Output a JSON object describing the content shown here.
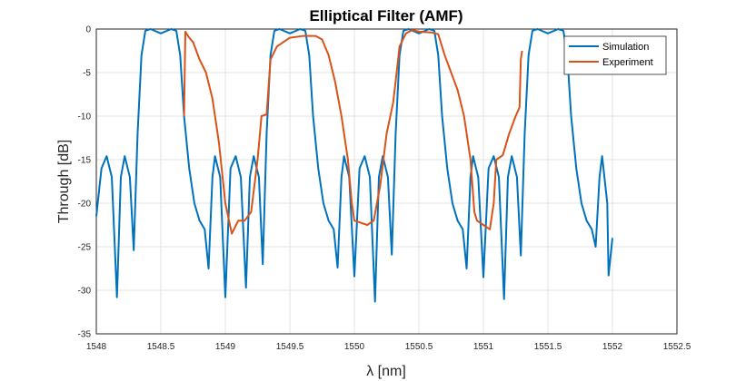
{
  "chart_data": {
    "type": "line",
    "title": "Elliptical Filter (AMF)",
    "xlabel": "λ [nm]",
    "ylabel": "Through [dB]",
    "xlim": [
      1548,
      1552.5
    ],
    "xticks": [
      1548,
      1548.5,
      1549,
      1549.5,
      1550,
      1550.5,
      1551,
      1551.5,
      1552,
      1552.5
    ],
    "ylim": [
      -35,
      0
    ],
    "yticks": [
      -35,
      -30,
      -25,
      -20,
      -15,
      -10,
      -5,
      0
    ],
    "grid": true,
    "legend": "northeast",
    "series": [
      {
        "name": "Simulation",
        "color": "#0072bd",
        "x": [
          1548,
          1548.04,
          1548.08,
          1548.12,
          1548.16,
          1548.19,
          1548.22,
          1548.26,
          1548.29,
          1548.32,
          1548.35,
          1548.38,
          1548.42,
          1548.5,
          1548.58,
          1548.62,
          1548.65,
          1548.68,
          1548.72,
          1548.76,
          1548.8,
          1548.84,
          1548.87,
          1548.9,
          1548.92,
          1548.96,
          1549,
          1549.04,
          1549.08,
          1549.12,
          1549.16,
          1549.19,
          1549.22,
          1549.26,
          1549.29,
          1549.32,
          1549.35,
          1549.38,
          1549.42,
          1549.5,
          1549.58,
          1549.62,
          1549.65,
          1549.68,
          1549.72,
          1549.76,
          1549.8,
          1549.84,
          1549.87,
          1549.9,
          1549.92,
          1549.96,
          1550,
          1550.04,
          1550.08,
          1550.12,
          1550.16,
          1550.19,
          1550.22,
          1550.26,
          1550.29,
          1550.32,
          1550.35,
          1550.38,
          1550.42,
          1550.5,
          1550.58,
          1550.62,
          1550.65,
          1550.68,
          1550.72,
          1550.76,
          1550.8,
          1550.84,
          1550.87,
          1550.9,
          1550.92,
          1550.96,
          1551,
          1551.04,
          1551.08,
          1551.12,
          1551.16,
          1551.19,
          1551.22,
          1551.26,
          1551.29,
          1551.32,
          1551.35,
          1551.38,
          1551.42,
          1551.5,
          1551.58,
          1551.62,
          1551.65,
          1551.68,
          1551.72,
          1551.76,
          1551.8,
          1551.84,
          1551.87,
          1551.9,
          1551.92,
          1551.96,
          1551.97,
          1552
        ],
        "values": [
          -21.5,
          -16,
          -14.6,
          -17,
          -30.8,
          -17,
          -14.6,
          -17,
          -25.4,
          -12,
          -3,
          -0.2,
          0,
          -0.5,
          0,
          -0.2,
          -3,
          -10,
          -16,
          -20,
          -22,
          -23,
          -27.5,
          -17,
          -14.6,
          -17,
          -30.8,
          -16,
          -14.6,
          -17,
          -29.7,
          -17,
          -14.6,
          -17,
          -27,
          -12,
          -3,
          -0.2,
          0,
          -0.5,
          0,
          -0.2,
          -3,
          -10,
          -16,
          -20,
          -22,
          -23,
          -27.4,
          -17,
          -14.6,
          -17,
          -28.4,
          -16,
          -14.6,
          -17,
          -31.3,
          -17,
          -14.6,
          -17,
          -25.9,
          -12,
          -3,
          -0.2,
          0,
          -0.5,
          0,
          -0.2,
          -3,
          -10,
          -16,
          -20,
          -22,
          -23,
          -27.5,
          -17,
          -14.6,
          -17,
          -28.5,
          -16,
          -14.6,
          -17,
          -31,
          -17,
          -14.6,
          -17,
          -26,
          -12,
          -3,
          -0.2,
          0,
          -0.5,
          0,
          -0.2,
          -3,
          -10,
          -16,
          -20,
          -22,
          -23,
          -25,
          -17,
          -14.6,
          -20,
          -28.3,
          -24
        ]
      },
      {
        "name": "Experiment",
        "color": "#d95319",
        "x": [
          1548.68,
          1548.69,
          1548.72,
          1548.75,
          1548.8,
          1548.85,
          1548.9,
          1548.95,
          1549,
          1549.05,
          1549.1,
          1549.15,
          1549.2,
          1549.25,
          1549.28,
          1549.32,
          1549.35,
          1549.4,
          1549.5,
          1549.6,
          1549.7,
          1549.75,
          1549.8,
          1549.85,
          1549.9,
          1549.95,
          1549.98,
          1550,
          1550.1,
          1550.15,
          1550.2,
          1550.25,
          1550.3,
          1550.32,
          1550.35,
          1550.4,
          1550.45,
          1550.5,
          1550.6,
          1550.65,
          1550.7,
          1550.75,
          1550.8,
          1550.85,
          1550.9,
          1550.93,
          1550.95,
          1551,
          1551.05,
          1551.08,
          1551.1,
          1551.15,
          1551.2,
          1551.25,
          1551.28,
          1551.29,
          1551.3
        ],
        "values": [
          -10,
          -0.3,
          -1,
          -1.5,
          -3.5,
          -5,
          -8,
          -13,
          -20,
          -23.5,
          -22,
          -22,
          -21,
          -15,
          -10,
          -9.8,
          -3.5,
          -2,
          -1,
          -0.8,
          -0.8,
          -1.2,
          -3,
          -6,
          -10,
          -15,
          -20,
          -22,
          -22.5,
          -22,
          -18,
          -12,
          -8.5,
          -6,
          -2,
          -0.5,
          -0.1,
          -0.3,
          -0.4,
          -0.6,
          -3,
          -5,
          -7,
          -10,
          -15,
          -21,
          -22,
          -22.5,
          -23,
          -20,
          -15,
          -14.5,
          -12,
          -10,
          -9,
          -3.5,
          -2.5
        ]
      }
    ]
  }
}
